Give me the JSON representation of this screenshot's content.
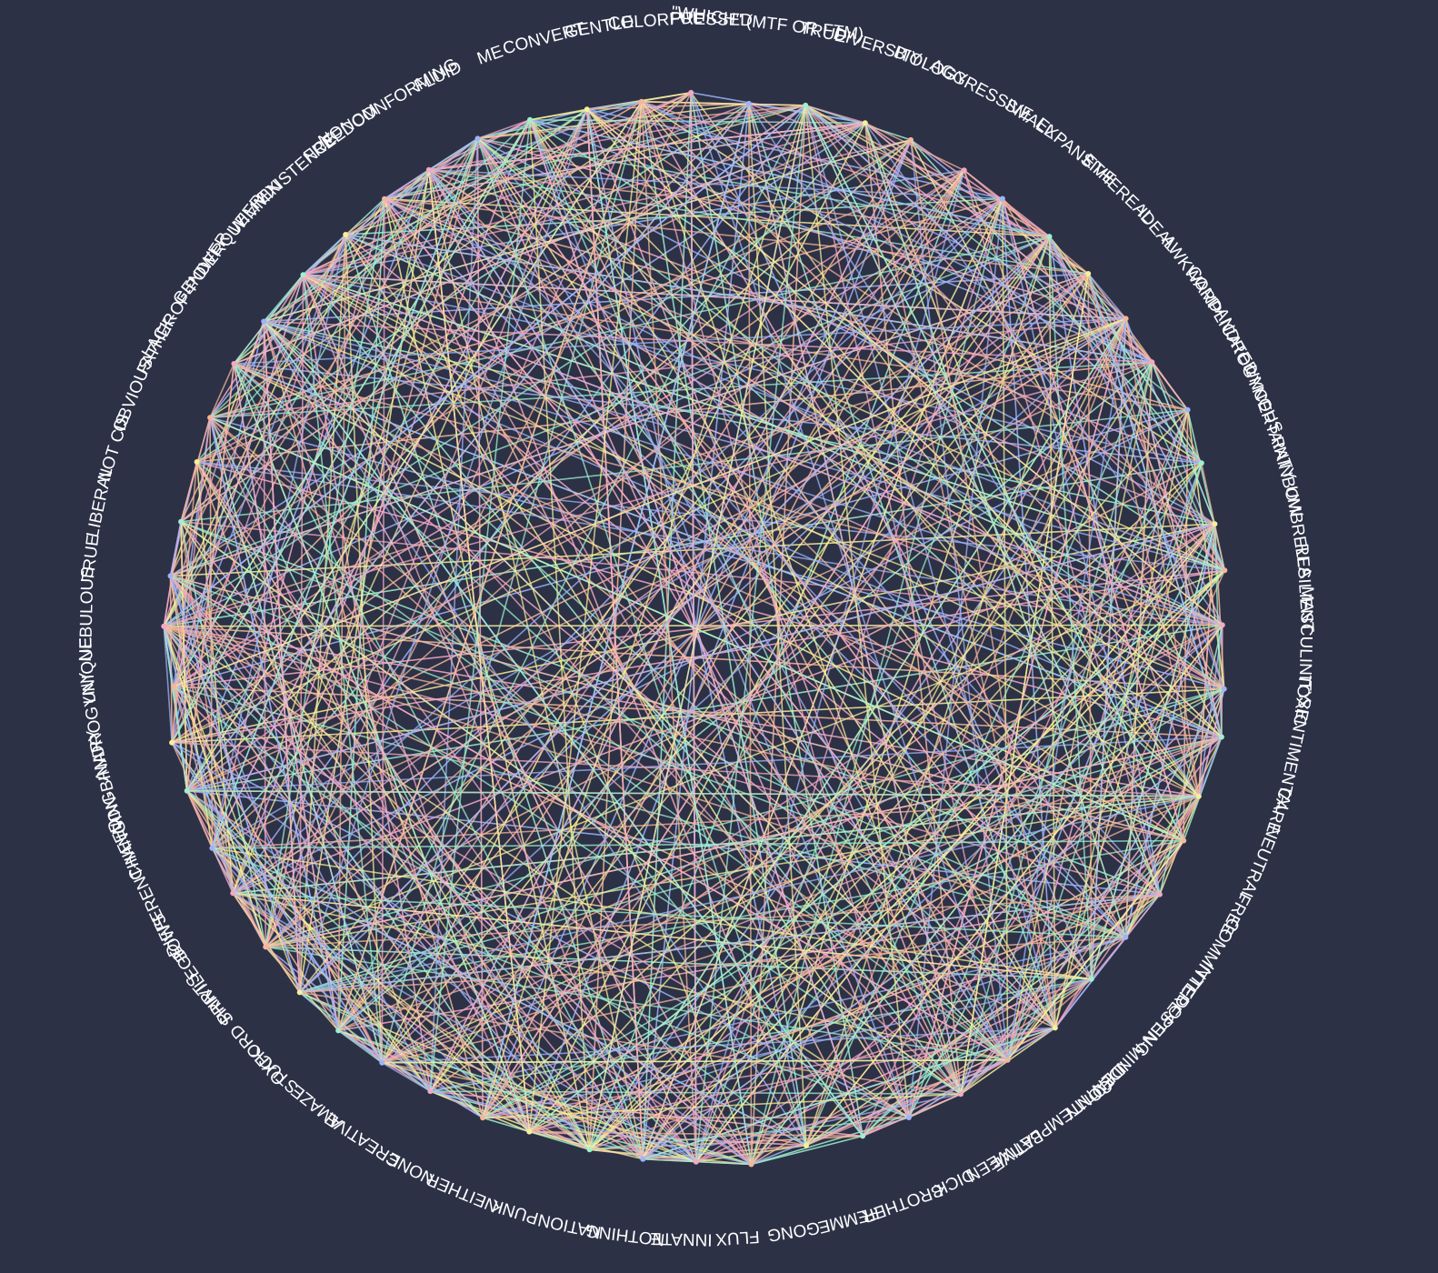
{
  "background_color": "#2c3146",
  "label_color": "#ffffff",
  "palette": [
    "#f4a9c4",
    "#9fb4f7",
    "#9ff0cf",
    "#f7ef9a",
    "#f5b79a"
  ],
  "labels": [
    "TRUE",
    "DIVERSITY",
    "BIOLOGY",
    "AGGRESSIVE",
    "SMALL",
    "EXPANSIVE",
    "ETHEREAL",
    "IDEAL",
    "AWKWARD",
    "COMPLICATED",
    "ANDROGYNOUS",
    "UNCERTAINTY",
    "RAINBOW",
    "UMBRELLA",
    "RESILIENT",
    "MASCULINITY",
    "TOXIC",
    "SENTIMENTAL",
    "CARE",
    "NEUTRAL",
    "FREE",
    "COMMITTED",
    "INTERESTING",
    "OPEN-MINDED",
    "IDENTITY",
    "CONTEMPLATIVE",
    "BETWEEN",
    "DICK",
    "BROTHER",
    "FEMME",
    "GONG",
    "FLUX",
    "INNATE",
    "NOTHING",
    "NATION",
    "PUNK",
    "NEITHER",
    "NONE",
    "CREATIVE",
    "AMAZE",
    "STUCK",
    "OXFORD SHIRTS",
    "PRIVILEGE",
    "BOWS",
    "DIFFERENT-NEED",
    "CHANGING",
    "NON-BINARY",
    "ANDROGYNY",
    "UNIQUE",
    "NEBULOUS",
    "TRUE",
    "LIBERAL",
    "NOT CIS",
    "OBVIOUS",
    "FATHER",
    "LACK-OF-POWER",
    "GENDERQUEER",
    "WIMMIN",
    "EXISTENCE",
    "FREEDOM",
    "NONCONFORMING",
    "FLUID",
    "ME",
    "CONVERT",
    "GENTLE",
    "COLORFUL",
    "PRESSED",
    "\"WHICH\" (MTF OR FTM)"
  ]
}
